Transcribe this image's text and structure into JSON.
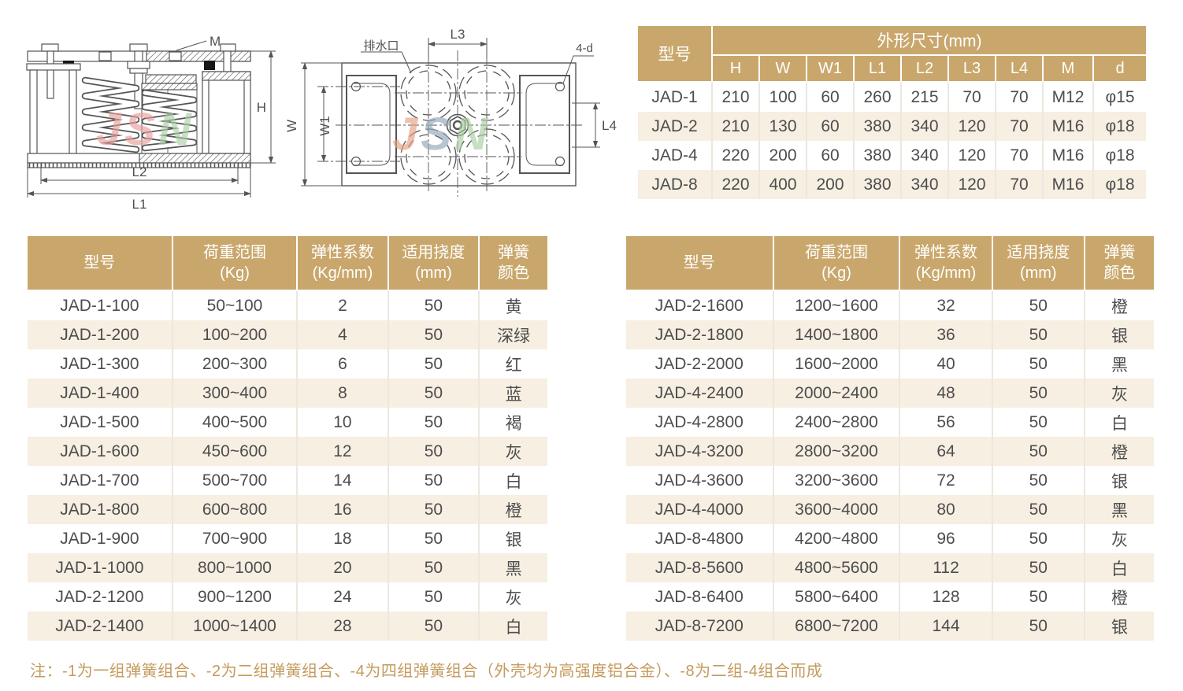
{
  "colors": {
    "header_bg": "#c9a76c",
    "row_alt_bg": "#f6efe2",
    "cell_text": "#4d4d4d",
    "note_text": "#c49b5e",
    "watermark_pink": "#e89f9b",
    "watermark_green": "#abd0a5"
  },
  "watermark": [
    "J",
    "S",
    "N"
  ],
  "side_view": {
    "labels": {
      "m": "M",
      "h": "H",
      "l2": "L2",
      "l1": "L1"
    }
  },
  "top_view": {
    "labels": {
      "drain": "排水口",
      "l3": "L3",
      "bolt_holes": "4-d",
      "w": "W",
      "w1": "W1",
      "l4": "L4"
    }
  },
  "dim_table": {
    "model_header": "型号",
    "group_header": "外形尺寸(mm)",
    "columns": [
      "H",
      "W",
      "W1",
      "L1",
      "L2",
      "L3",
      "L4",
      "M",
      "d"
    ],
    "rows": [
      {
        "model": "JAD-1",
        "values": [
          "210",
          "100",
          "60",
          "260",
          "215",
          "70",
          "70",
          "M12",
          "φ15"
        ]
      },
      {
        "model": "JAD-2",
        "values": [
          "210",
          "130",
          "60",
          "380",
          "340",
          "120",
          "70",
          "M16",
          "φ18"
        ]
      },
      {
        "model": "JAD-4",
        "values": [
          "220",
          "200",
          "60",
          "380",
          "340",
          "120",
          "70",
          "M16",
          "φ18"
        ]
      },
      {
        "model": "JAD-8",
        "values": [
          "220",
          "400",
          "200",
          "380",
          "340",
          "120",
          "70",
          "M16",
          "φ18"
        ]
      }
    ]
  },
  "spec_headers": {
    "model": "型号",
    "load1": "荷重范围",
    "load2": "(Kg)",
    "k1": "弹性系数",
    "k2": "(Kg/mm)",
    "defl1": "适用挠度",
    "defl2": "(mm)",
    "color1": "弹簧",
    "color2": "颜色"
  },
  "spec_left": {
    "rows": [
      {
        "model": "JAD-1-100",
        "load": "50~100",
        "k": "2",
        "defl": "50",
        "color": "黄"
      },
      {
        "model": "JAD-1-200",
        "load": "100~200",
        "k": "4",
        "defl": "50",
        "color": "深绿"
      },
      {
        "model": "JAD-1-300",
        "load": "200~300",
        "k": "6",
        "defl": "50",
        "color": "红"
      },
      {
        "model": "JAD-1-400",
        "load": "300~400",
        "k": "8",
        "defl": "50",
        "color": "蓝"
      },
      {
        "model": "JAD-1-500",
        "load": "400~500",
        "k": "10",
        "defl": "50",
        "color": "褐"
      },
      {
        "model": "JAD-1-600",
        "load": "450~600",
        "k": "12",
        "defl": "50",
        "color": "灰"
      },
      {
        "model": "JAD-1-700",
        "load": "500~700",
        "k": "14",
        "defl": "50",
        "color": "白"
      },
      {
        "model": "JAD-1-800",
        "load": "600~800",
        "k": "16",
        "defl": "50",
        "color": "橙"
      },
      {
        "model": "JAD-1-900",
        "load": "700~900",
        "k": "18",
        "defl": "50",
        "color": "银"
      },
      {
        "model": "JAD-1-1000",
        "load": "800~1000",
        "k": "20",
        "defl": "50",
        "color": "黑"
      },
      {
        "model": "JAD-2-1200",
        "load": "900~1200",
        "k": "24",
        "defl": "50",
        "color": "灰"
      },
      {
        "model": "JAD-2-1400",
        "load": "1000~1400",
        "k": "28",
        "defl": "50",
        "color": "白"
      }
    ]
  },
  "spec_right": {
    "rows": [
      {
        "model": "JAD-2-1600",
        "load": "1200~1600",
        "k": "32",
        "defl": "50",
        "color": "橙"
      },
      {
        "model": "JAD-2-1800",
        "load": "1400~1800",
        "k": "36",
        "defl": "50",
        "color": "银"
      },
      {
        "model": "JAD-2-2000",
        "load": "1600~2000",
        "k": "40",
        "defl": "50",
        "color": "黑"
      },
      {
        "model": "JAD-4-2400",
        "load": "2000~2400",
        "k": "48",
        "defl": "50",
        "color": "灰"
      },
      {
        "model": "JAD-4-2800",
        "load": "2400~2800",
        "k": "56",
        "defl": "50",
        "color": "白"
      },
      {
        "model": "JAD-4-3200",
        "load": "2800~3200",
        "k": "64",
        "defl": "50",
        "color": "橙"
      },
      {
        "model": "JAD-4-3600",
        "load": "3200~3600",
        "k": "72",
        "defl": "50",
        "color": "银"
      },
      {
        "model": "JAD-4-4000",
        "load": "3600~4000",
        "k": "80",
        "defl": "50",
        "color": "黑"
      },
      {
        "model": "JAD-8-4800",
        "load": "4200~4800",
        "k": "96",
        "defl": "50",
        "color": "灰"
      },
      {
        "model": "JAD-8-5600",
        "load": "4800~5600",
        "k": "112",
        "defl": "50",
        "color": "白"
      },
      {
        "model": "JAD-8-6400",
        "load": "5800~6400",
        "k": "128",
        "defl": "50",
        "color": "橙"
      },
      {
        "model": "JAD-8-7200",
        "load": "6800~7200",
        "k": "144",
        "defl": "50",
        "color": "银"
      }
    ]
  },
  "note": {
    "text": "注：-1为一组弹簧组合、-2为二组弹簧组合、-4为四组弹簧组合（外壳均为高强度铝合金）、-8为二组-4组合而成"
  }
}
